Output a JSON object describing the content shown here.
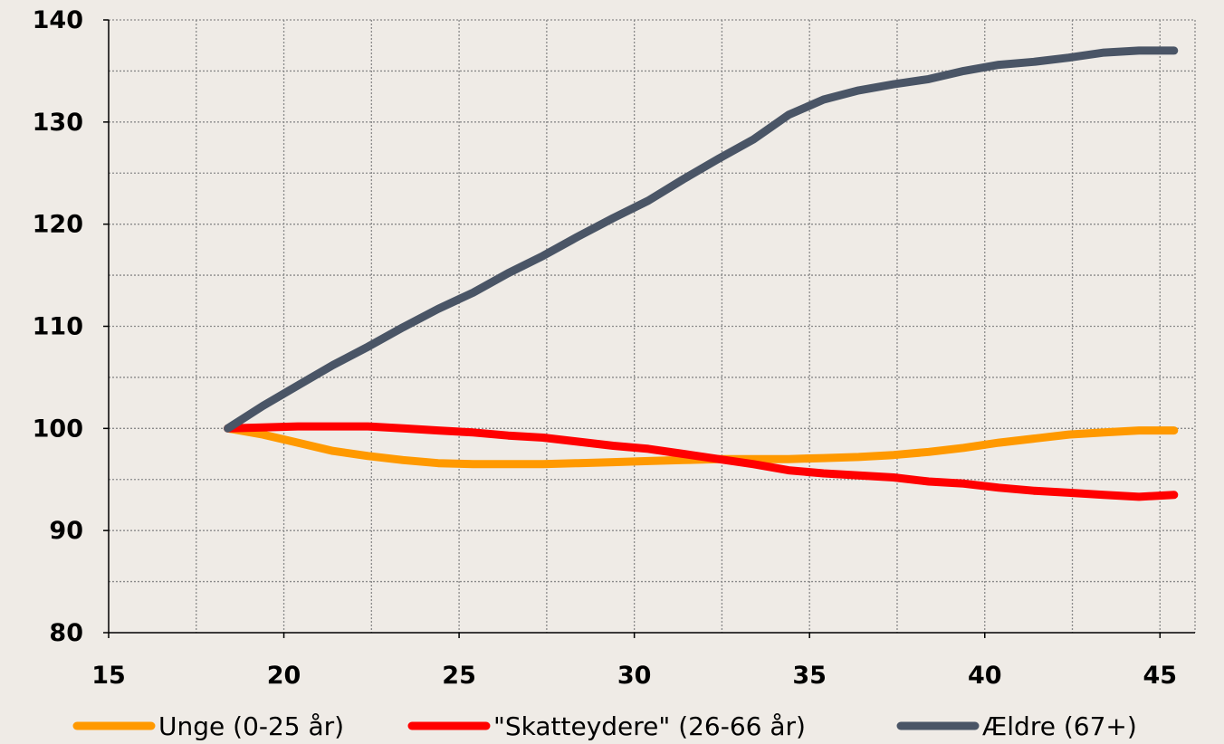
{
  "chart_data": {
    "type": "line",
    "title": "",
    "xlabel": "",
    "ylabel": "",
    "xlim": [
      15,
      46
    ],
    "ylim": [
      80,
      140
    ],
    "x_ticks": [
      "15",
      "20",
      "25",
      "30",
      "35",
      "40",
      "45"
    ],
    "y_ticks": [
      "80",
      "90",
      "100",
      "110",
      "120",
      "130",
      "140"
    ],
    "grid": true,
    "legend_position": "bottom",
    "series": [
      {
        "name": "Unge (0-25 år)",
        "color": "#ff9900",
        "x": [
          18.4,
          19.4,
          20.4,
          21.4,
          22.4,
          23.4,
          24.4,
          25.4,
          26.4,
          27.4,
          28.4,
          29.4,
          30.4,
          31.4,
          32.4,
          33.4,
          34.4,
          35.4,
          36.4,
          37.4,
          38.4,
          39.4,
          40.4,
          41.4,
          42.4,
          43.4,
          44.4,
          45.4
        ],
        "values": [
          100,
          99.4,
          98.6,
          97.8,
          97.3,
          96.9,
          96.6,
          96.5,
          96.5,
          96.5,
          96.6,
          96.7,
          96.8,
          96.9,
          97.0,
          97.0,
          97.0,
          97.1,
          97.2,
          97.4,
          97.7,
          98.1,
          98.6,
          99.0,
          99.4,
          99.6,
          99.8,
          99.8
        ]
      },
      {
        "name": "\"Skatteydere\" (26-66 år)",
        "color": "#ff0000",
        "x": [
          18.4,
          19.4,
          20.4,
          21.4,
          22.4,
          23.4,
          24.4,
          25.4,
          26.4,
          27.4,
          28.4,
          29.4,
          30.4,
          31.4,
          32.4,
          33.4,
          34.4,
          35.4,
          36.4,
          37.4,
          38.4,
          39.4,
          40.4,
          41.4,
          42.4,
          43.4,
          44.4,
          45.4
        ],
        "values": [
          100,
          100.1,
          100.2,
          100.2,
          100.2,
          100.0,
          99.8,
          99.6,
          99.3,
          99.1,
          98.7,
          98.3,
          98.0,
          97.5,
          97.0,
          96.5,
          95.9,
          95.6,
          95.4,
          95.2,
          94.8,
          94.6,
          94.2,
          93.9,
          93.7,
          93.5,
          93.3,
          93.5
        ]
      },
      {
        "name": "Ældre (67+)",
        "color": "#4a5566",
        "x": [
          18.4,
          19.4,
          20.4,
          21.4,
          22.4,
          23.4,
          24.4,
          25.4,
          26.4,
          27.4,
          28.4,
          29.4,
          30.4,
          31.4,
          32.4,
          33.4,
          34.4,
          35.4,
          36.4,
          37.4,
          38.4,
          39.4,
          40.4,
          41.4,
          42.4,
          43.4,
          44.4,
          45.4
        ],
        "values": [
          100,
          102.2,
          104.2,
          106.2,
          108.0,
          109.9,
          111.7,
          113.3,
          115.2,
          116.9,
          118.8,
          120.6,
          122.3,
          124.4,
          126.4,
          128.3,
          130.7,
          132.2,
          133.1,
          133.7,
          134.2,
          135.0,
          135.6,
          135.9,
          136.3,
          136.8,
          137.0,
          137.0
        ]
      }
    ]
  }
}
